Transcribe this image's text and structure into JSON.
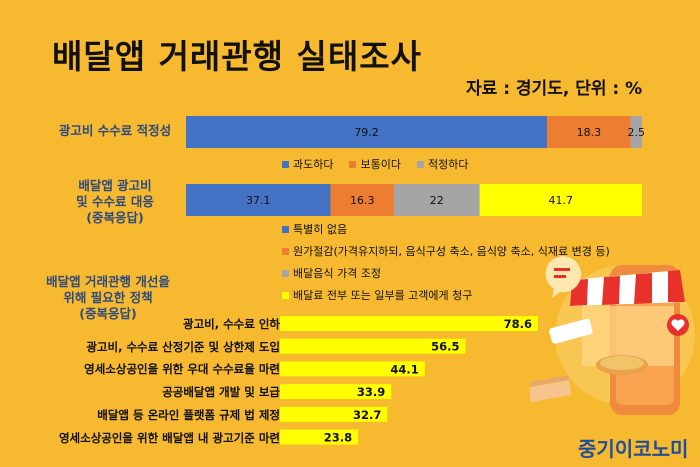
{
  "title": "배달앱 거래관행 실태조사",
  "source": "자료 : 경기도, 단위 : %",
  "brand": "중기이코노미",
  "colors": {
    "blue": "#4472C4",
    "orange": "#ED7D31",
    "gray": "#A5A5A5",
    "yellow": "#FFFF00",
    "label_blue": "#2E4A7E"
  },
  "chart_data": [
    {
      "type": "bar",
      "stacked": true,
      "orientation": "horizontal",
      "category": "광고비 수수료 적정성",
      "series": [
        {
          "name": "과도하다",
          "value": 79.2,
          "color": "#4472C4"
        },
        {
          "name": "보통이다",
          "value": 18.3,
          "color": "#ED7D31"
        },
        {
          "name": "적정하다",
          "value": 2.5,
          "color": "#A5A5A5"
        }
      ],
      "legend": "bottom"
    },
    {
      "type": "bar",
      "stacked": true,
      "orientation": "horizontal",
      "category": "배달앱 광고비\n및 수수료 대응\n(중복응답)",
      "series": [
        {
          "name": "특별히 없음",
          "value": 37.1,
          "color": "#4472C4"
        },
        {
          "name": "원가절감(가격유지하되, 음식구성 축소, 음식양 축소, 식재료 변경 등)",
          "value": 16.3,
          "color": "#ED7D31"
        },
        {
          "name": "배달음식 가격 조정",
          "value": 22,
          "color": "#A5A5A5"
        },
        {
          "name": "배달료 전부 또는 일부를 고객에게 청구",
          "value": 41.7,
          "color": "#FFFF00"
        }
      ],
      "legend": "bottom"
    },
    {
      "type": "bar",
      "orientation": "horizontal",
      "title": "배달앱 거래관행 개선을\n위해  필요한 정책\n(중복응답)",
      "categories": [
        "광고비, 수수료 인하",
        "광고비, 수수료 산정기준 및 상한제 도입",
        "영세소상공인을 위한 우대 수수료율 마련",
        "공공배달앱 개발 및 보급",
        "배달앱 등 온라인 플랫폼 규제 법 제정",
        "영세소상공인을 위한 배달앱 내 광고기준 마련"
      ],
      "values": [
        78.6,
        56.5,
        44.1,
        33.9,
        32.7,
        23.8
      ],
      "color": "#FFFF00"
    }
  ]
}
